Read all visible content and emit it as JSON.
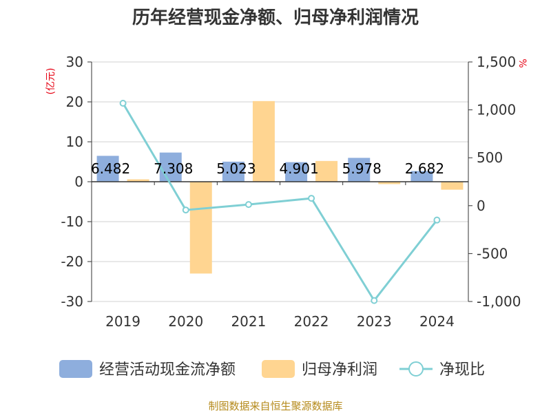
{
  "chart_data": {
    "type": "bar",
    "title": "历年经营现金净额、归母净利润情况",
    "categories": [
      "2019",
      "2020",
      "2021",
      "2022",
      "2023",
      "2024"
    ],
    "left_axis": {
      "unit_label": "(亿元)",
      "ylim": [
        -30,
        30
      ],
      "ticks": [
        30,
        20,
        10,
        0,
        -10,
        -20,
        -30
      ],
      "tick_labels": [
        "30",
        "20",
        "10",
        "0",
        "-10",
        "-20",
        "-30"
      ]
    },
    "right_axis": {
      "unit_label": "%",
      "ylim": [
        -1000,
        1500
      ],
      "ticks": [
        1500,
        1000,
        500,
        0,
        -500,
        -1000
      ],
      "tick_labels": [
        "1,500",
        "1,000",
        "500",
        "0",
        "-500",
        "-1,000"
      ]
    },
    "series": [
      {
        "name": "经营活动现金流净额",
        "type": "bar",
        "axis": "left",
        "color": "#8eaedd",
        "values": [
          6.482,
          7.308,
          5.023,
          4.901,
          5.978,
          2.682
        ],
        "labels": [
          "6.482",
          "7.308",
          "5.023",
          "4.901",
          "5.978",
          "2.682"
        ]
      },
      {
        "name": "归母净利润",
        "type": "bar",
        "axis": "left",
        "color": "#ffd591",
        "values": [
          0.6,
          -23.0,
          20.2,
          5.2,
          -0.6,
          -2.0
        ]
      },
      {
        "name": "净现比",
        "type": "line",
        "axis": "right",
        "color": "#7fcfd4",
        "values": [
          1069,
          -45,
          12,
          77,
          -990,
          -150
        ]
      }
    ],
    "grid": true,
    "legend_position": "bottom"
  },
  "footer": {
    "source": "制图数据来自恒生聚源数据库"
  }
}
